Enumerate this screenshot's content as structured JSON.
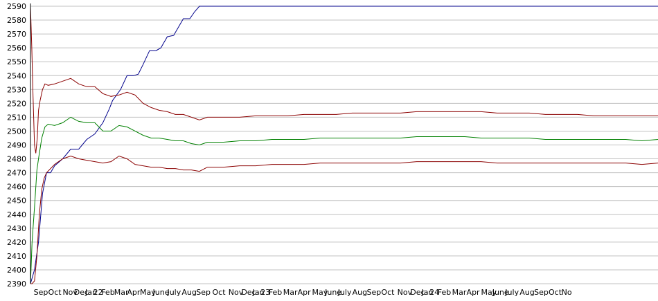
{
  "chart_data": {
    "type": "line",
    "title": "",
    "xlabel": "",
    "ylabel": "",
    "ylim": [
      2390,
      2590
    ],
    "yticks": [
      2390,
      2400,
      2410,
      2420,
      2430,
      2440,
      2450,
      2460,
      2470,
      2480,
      2490,
      2500,
      2510,
      2520,
      2530,
      2540,
      2550,
      2560,
      2570,
      2580,
      2590
    ],
    "xlim": [
      0,
      39
    ],
    "x_tick_labels": [
      "Sep",
      "Oct",
      "Nov",
      "Dec",
      "Jan",
      "22",
      "Feb",
      "Mar",
      "Apr",
      "May",
      "June",
      "July",
      "Aug",
      "Sep",
      "Oct",
      "Nov",
      "Dec",
      "Jan",
      "23",
      "Feb",
      "Mar",
      "Apr",
      "May",
      "June",
      "July",
      "Aug",
      "Sep",
      "Oct",
      "Nov",
      "Dec",
      "Jan",
      "24",
      "Feb",
      "Mar",
      "Apr",
      "May",
      "June",
      "July",
      "Aug",
      "Sep",
      "Oct",
      "No"
    ],
    "x_tick_positions": [
      0.2,
      1.1,
      2.0,
      2.7,
      3.4,
      3.9,
      4.4,
      5.2,
      6.0,
      6.8,
      7.6,
      8.5,
      9.4,
      10.3,
      11.3,
      12.3,
      13.1,
      13.8,
      14.3,
      14.8,
      15.7,
      16.6,
      17.5,
      18.3,
      19.1,
      20.0,
      20.9,
      21.8,
      22.8,
      23.6,
      24.3,
      24.8,
      25.3,
      26.2,
      27.1,
      28.0,
      28.7,
      29.5,
      30.4,
      31.3,
      32.2,
      33.0
    ],
    "grid": true,
    "legend": "none",
    "colors": {
      "blue": "#00008b",
      "green": "#008000",
      "red": "#8b0000"
    },
    "series": [
      {
        "color": "#00008b",
        "x": [
          0,
          0.25,
          0.5,
          0.75,
          1.0,
          1.25,
          1.5,
          2.0,
          2.5,
          3.0,
          3.5,
          4.0,
          4.5,
          4.9,
          5.1,
          5.6,
          6.0,
          6.4,
          6.7,
          7.0,
          7.4,
          7.8,
          8.1,
          8.5,
          8.9,
          9.2,
          9.5,
          9.9,
          10.2,
          10.5,
          10.8,
          11.0,
          12,
          15,
          20,
          25,
          30,
          35,
          39
        ],
        "y": [
          2390,
          2400,
          2420,
          2455,
          2470,
          2470,
          2475,
          2480,
          2487,
          2487,
          2494,
          2498,
          2506,
          2516,
          2522,
          2530,
          2540,
          2540,
          2541,
          2548,
          2558,
          2558,
          2560,
          2568,
          2569,
          2575,
          2581,
          2581,
          2586,
          2590,
          2590,
          2590,
          2590,
          2590,
          2590,
          2590,
          2590,
          2590,
          2590
        ]
      },
      {
        "color": "#008000",
        "x": [
          0,
          0.1,
          0.25,
          0.4,
          0.5,
          0.7,
          0.9,
          1.1,
          1.5,
          2.0,
          2.5,
          3.0,
          3.5,
          4.0,
          4.5,
          5.0,
          5.5,
          6.0,
          6.5,
          7.0,
          7.5,
          8.0,
          8.5,
          9.0,
          9.5,
          10.0,
          10.5,
          11.0,
          12,
          13,
          14,
          15,
          16,
          17,
          18,
          19,
          20,
          21,
          22,
          23,
          24,
          25,
          26,
          27,
          28,
          29,
          30,
          31,
          32,
          33,
          34,
          35,
          36,
          37,
          38,
          39
        ],
        "y": [
          2390,
          2420,
          2445,
          2472,
          2480,
          2495,
          2503,
          2505,
          2504,
          2506,
          2510,
          2507,
          2506,
          2506,
          2500,
          2500,
          2504,
          2503,
          2500,
          2497,
          2495,
          2495,
          2494,
          2493,
          2493,
          2491,
          2490,
          2492,
          2492,
          2493,
          2493,
          2494,
          2494,
          2494,
          2495,
          2495,
          2495,
          2495,
          2495,
          2495,
          2496,
          2496,
          2496,
          2496,
          2495,
          2495,
          2495,
          2495,
          2494,
          2494,
          2494,
          2494,
          2494,
          2494,
          2493,
          2494
        ]
      },
      {
        "color": "#8b0000",
        "x": [
          0,
          0.08,
          0.16,
          0.25,
          0.33,
          0.42,
          0.5,
          0.6,
          0.75,
          0.9,
          1.1,
          1.5,
          2.0,
          2.5,
          3.0,
          3.5,
          4.0,
          4.5,
          5.0,
          5.5,
          6.0,
          6.5,
          7.0,
          7.5,
          8.0,
          8.5,
          9.0,
          9.5,
          10.0,
          10.5,
          11.0,
          12,
          13,
          14,
          15,
          16,
          17,
          18,
          19,
          20,
          21,
          22,
          23,
          24,
          25,
          26,
          27,
          28,
          29,
          30,
          31,
          32,
          33,
          34,
          35,
          36,
          37,
          38,
          39
        ],
        "y": [
          2590,
          2560,
          2525,
          2490,
          2484,
          2495,
          2515,
          2522,
          2530,
          2534,
          2533,
          2534,
          2536,
          2538,
          2534,
          2532,
          2532,
          2527,
          2525,
          2526,
          2528,
          2526,
          2520,
          2517,
          2515,
          2514,
          2512,
          2512,
          2510,
          2508,
          2510,
          2510,
          2510,
          2511,
          2511,
          2511,
          2512,
          2512,
          2512,
          2513,
          2513,
          2513,
          2513,
          2514,
          2514,
          2514,
          2514,
          2514,
          2513,
          2513,
          2513,
          2512,
          2512,
          2512,
          2511,
          2511,
          2511,
          2511,
          2511
        ]
      },
      {
        "color": "#8b0000",
        "x": [
          0,
          0.1,
          0.25,
          0.4,
          0.55,
          0.7,
          0.85,
          1.0,
          1.5,
          2.0,
          2.5,
          3.0,
          3.5,
          4.0,
          4.5,
          5.0,
          5.5,
          6.0,
          6.5,
          7.0,
          7.5,
          8.0,
          8.5,
          9.0,
          9.5,
          10.0,
          10.5,
          11.0,
          12,
          13,
          14,
          15,
          16,
          17,
          18,
          19,
          20,
          21,
          22,
          23,
          24,
          25,
          26,
          27,
          28,
          29,
          30,
          31,
          32,
          33,
          34,
          35,
          36,
          37,
          38,
          39
        ],
        "y": [
          2390,
          2390,
          2392,
          2410,
          2440,
          2458,
          2466,
          2470,
          2476,
          2480,
          2482,
          2480,
          2479,
          2478,
          2477,
          2478,
          2482,
          2480,
          2476,
          2475,
          2474,
          2474,
          2473,
          2473,
          2472,
          2472,
          2471,
          2474,
          2474,
          2475,
          2475,
          2476,
          2476,
          2476,
          2477,
          2477,
          2477,
          2477,
          2477,
          2477,
          2478,
          2478,
          2478,
          2478,
          2478,
          2477,
          2477,
          2477,
          2477,
          2477,
          2477,
          2477,
          2477,
          2477,
          2476,
          2477
        ]
      }
    ]
  }
}
